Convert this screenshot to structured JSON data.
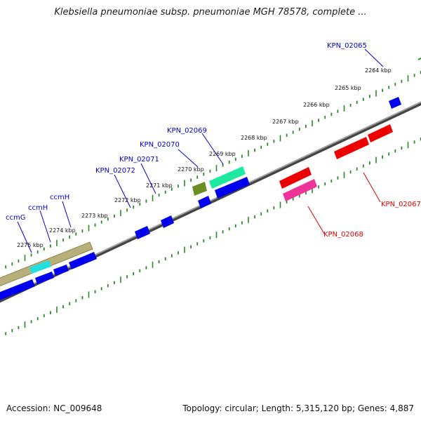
{
  "title": "Klebsiella pneumoniae subsp. pneumoniae MGH 78578, complete ...",
  "footer": {
    "accession": "Accession: NC_009648",
    "summary": "Topology: circular; Length: 5,315,120 bp; Genes: 4,887"
  },
  "colors": {
    "backbone": "#808080",
    "scale_ticks": "#2a8a2a",
    "forward_label": "#0000cc",
    "reverse_label": "#dd0000"
  },
  "scale_labels": [
    "2264 kbp",
    "2265 kbp",
    "2266 kbp",
    "2267 kbp",
    "2268 kbp",
    "2269 kbp",
    "2270 kbp",
    "2271 kbp",
    "2272 kbp",
    "2273 kbp",
    "2274 kbp",
    "2275 kbp"
  ],
  "gene_labels": [
    {
      "text": "KPN_02065",
      "strand": "forward"
    },
    {
      "text": "KPN_02069",
      "strand": "forward"
    },
    {
      "text": "KPN_02070",
      "strand": "forward"
    },
    {
      "text": "KPN_02071",
      "strand": "forward"
    },
    {
      "text": "KPN_02072",
      "strand": "forward"
    },
    {
      "text": "ccmH",
      "strand": "forward"
    },
    {
      "text": "ccmH",
      "strand": "forward"
    },
    {
      "text": "ccmG",
      "strand": "forward"
    },
    {
      "text": "KPN_02067",
      "strand": "reverse"
    },
    {
      "text": "KPN_02068",
      "strand": "reverse"
    }
  ]
}
